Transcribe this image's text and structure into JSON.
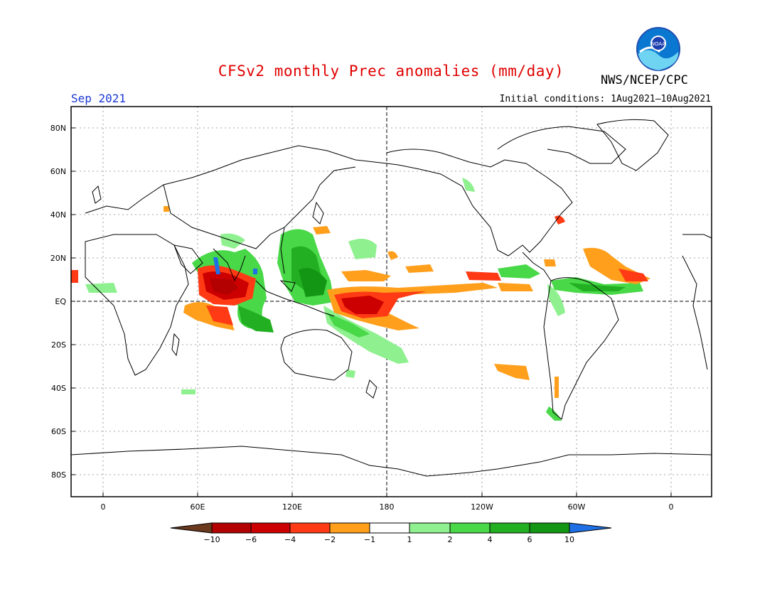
{
  "header": {
    "title": "CFSv2 monthly Prec anomalies (mm/day)",
    "month": "Sep 2021",
    "initial_conditions": "Initial conditions: 1Aug2021–10Aug2021",
    "agency": "NWS/NCEP/CPC",
    "logo_text": "NOAA"
  },
  "map": {
    "lat_labels": [
      "80N",
      "60N",
      "40N",
      "20N",
      "EQ",
      "20S",
      "40S",
      "60S",
      "80S"
    ],
    "lon_labels": [
      "0",
      "60E",
      "120E",
      "180",
      "120W",
      "60W",
      "0"
    ],
    "projection": "cylindrical-equidistant"
  },
  "colorbar": {
    "labels": [
      "−10",
      "−6",
      "−4",
      "−2",
      "−1",
      "1",
      "2",
      "4",
      "6",
      "10"
    ],
    "colors": [
      "#6b3a1e",
      "#b30000",
      "#cc0000",
      "#ff3a14",
      "#ff9f1c",
      "#ffffff",
      "#8ef08e",
      "#48d848",
      "#22b022",
      "#139613",
      "#1f6fe5"
    ]
  }
}
